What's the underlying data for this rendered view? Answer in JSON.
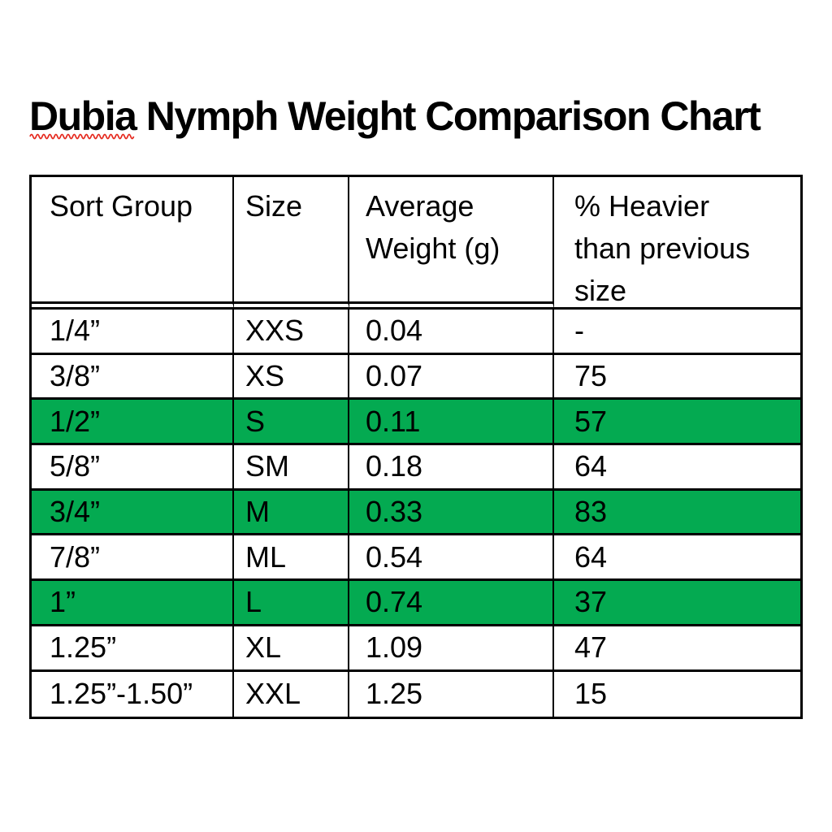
{
  "title": {
    "misspelled_word": "Dubia",
    "rest": " Nymph Weight Comparison Chart",
    "squiggle_color": "#e5291e",
    "text_color": "#000000"
  },
  "table": {
    "highlight_color": "#04aa51",
    "border_color": "#000000",
    "columns": [
      [
        "Sort Group"
      ],
      [
        "Size"
      ],
      [
        "Average",
        "Weight (g)"
      ],
      [
        "% Heavier",
        "than previous",
        "size"
      ]
    ],
    "column_keys": [
      "sort-group",
      "size",
      "average-weight",
      "pct-heavier"
    ],
    "rows": [
      {
        "cells": [
          "1/4”",
          "XXS",
          "0.04",
          "-"
        ],
        "highlighted": false
      },
      {
        "cells": [
          "3/8”",
          "XS",
          "0.07",
          "75"
        ],
        "highlighted": false
      },
      {
        "cells": [
          "1/2”",
          "S",
          "0.11",
          "57"
        ],
        "highlighted": true
      },
      {
        "cells": [
          "5/8”",
          "SM",
          "0.18",
          "64"
        ],
        "highlighted": false
      },
      {
        "cells": [
          "3/4”",
          "M",
          "0.33",
          "83"
        ],
        "highlighted": true
      },
      {
        "cells": [
          "7/8”",
          "ML",
          "0.54",
          "64"
        ],
        "highlighted": false
      },
      {
        "cells": [
          "1”",
          "L",
          "0.74",
          "37"
        ],
        "highlighted": true
      },
      {
        "cells": [
          "1.25”",
          "XL",
          "1.09",
          "47"
        ],
        "highlighted": false
      },
      {
        "cells": [
          "1.25”-1.50”",
          "XXL",
          "1.25",
          "15"
        ],
        "highlighted": false
      }
    ]
  }
}
